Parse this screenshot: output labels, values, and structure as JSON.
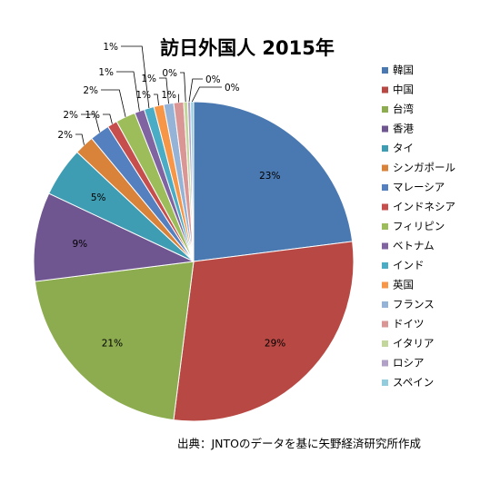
{
  "chart_data": {
    "type": "pie",
    "title": "訪日外国人 2015年",
    "start_angle_deg": 0,
    "direction": "clockwise",
    "legend_position": "right",
    "slices": [
      {
        "label": "韓国",
        "value": 23,
        "value_label": "23%",
        "color": "#4a78b0"
      },
      {
        "label": "中国",
        "value": 29,
        "value_label": "29%",
        "color": "#b84843"
      },
      {
        "label": "台湾",
        "value": 21,
        "value_label": "21%",
        "color": "#8cac4f"
      },
      {
        "label": "香港",
        "value": 9,
        "value_label": "9%",
        "color": "#6f5690"
      },
      {
        "label": "タイ",
        "value": 5,
        "value_label": "5%",
        "color": "#3f9db3"
      },
      {
        "label": "シンガポール",
        "value": 2,
        "value_label": "2%",
        "color": "#d8823a"
      },
      {
        "label": "マレーシア",
        "value": 2,
        "value_label": "2%",
        "color": "#5480c0"
      },
      {
        "label": "インドネシア",
        "value": 1,
        "value_label": "1%",
        "color": "#c64e4c"
      },
      {
        "label": "フィリピン",
        "value": 2,
        "value_label": "2%",
        "color": "#9dbd5b"
      },
      {
        "label": "ベトナム",
        "value": 1,
        "value_label": "1%",
        "color": "#8064a2"
      },
      {
        "label": "インド",
        "value": 1,
        "value_label": "1%",
        "color": "#4bacc6"
      },
      {
        "label": "英国",
        "value": 1,
        "value_label": "1%",
        "color": "#f79646"
      },
      {
        "label": "フランス",
        "value": 1,
        "value_label": "1%",
        "color": "#95b3d7"
      },
      {
        "label": "ドイツ",
        "value": 1,
        "value_label": "1%",
        "color": "#d99694"
      },
      {
        "label": "イタリア",
        "value": 0.4,
        "value_label": "0%",
        "color": "#c3d69b"
      },
      {
        "label": "ロシア",
        "value": 0.3,
        "value_label": "0%",
        "color": "#b2a1c7"
      },
      {
        "label": "スペイン",
        "value": 0.3,
        "value_label": "0%",
        "color": "#93cddd"
      }
    ],
    "source_note": "出典：JNTOのデータを基に矢野経済研究所作成"
  }
}
